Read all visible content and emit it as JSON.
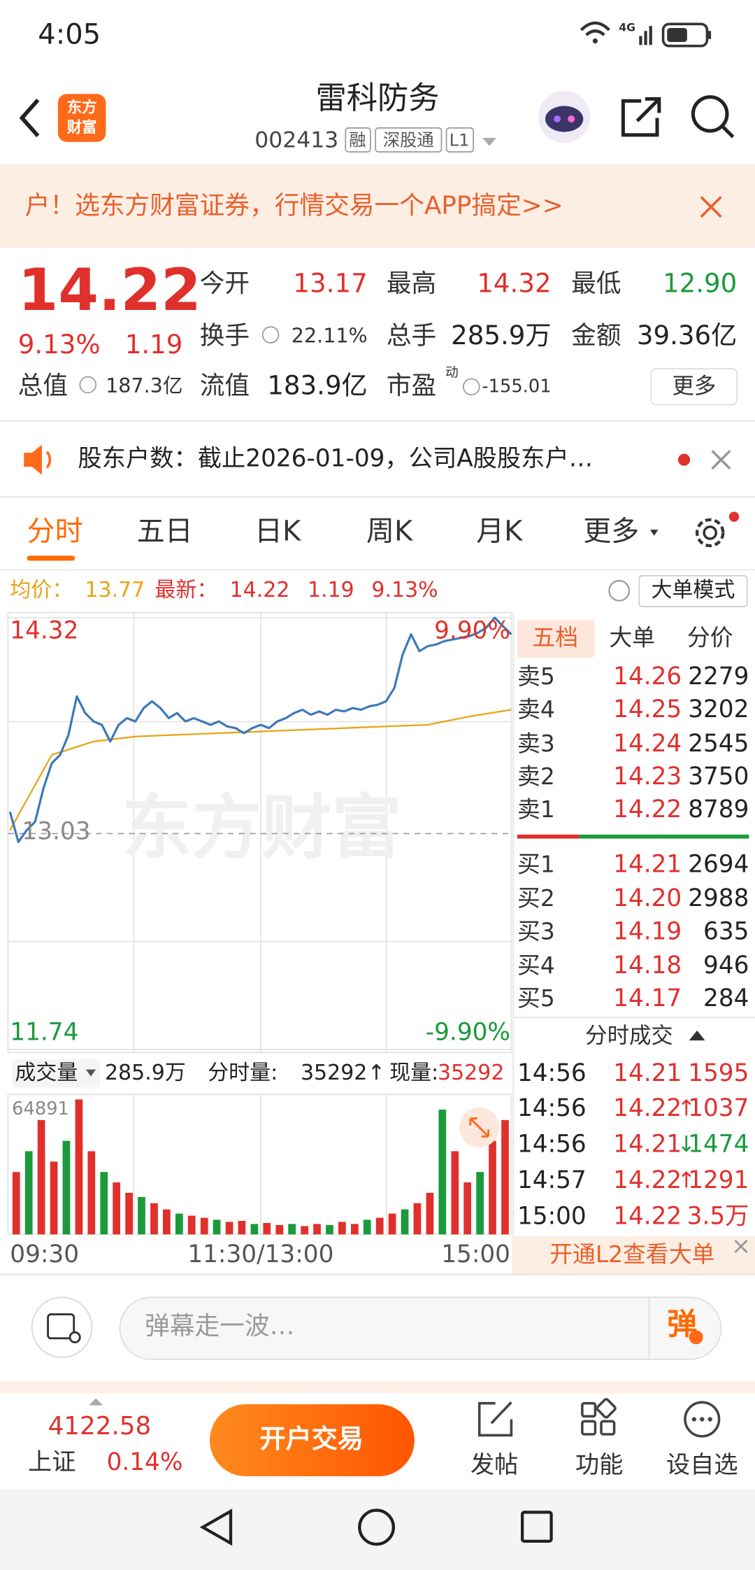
{
  "status_bar": {
    "time": "4:05",
    "network": "4G"
  },
  "header": {
    "logo": [
      "东方",
      "财富"
    ],
    "title": "雷科防务",
    "code": "002413",
    "tags": [
      "融",
      "深股通",
      "L1"
    ]
  },
  "banner": {
    "text": "户！选东方财富证券，行情交易一个APP搞定>>"
  },
  "quote": {
    "price": "14.22",
    "change_pct": "9.13%",
    "change": "1.19",
    "stats": [
      {
        "label": "今开",
        "value": "13.17",
        "color": "#e0302c"
      },
      {
        "label": "最高",
        "value": "14.32",
        "color": "#e0302c"
      },
      {
        "label": "最低",
        "value": "12.90",
        "color": "#1a9a3a"
      },
      {
        "label": "换手",
        "value": "22.11%",
        "color": "#333333"
      },
      {
        "label": "总手",
        "value": "285.9万",
        "color": "#222222"
      },
      {
        "label": "金额",
        "value": "39.36亿",
        "color": "#222222"
      },
      {
        "label": "总值",
        "value": "187.3亿",
        "color": "#333333"
      },
      {
        "label": "流值",
        "value": "183.9亿",
        "color": "#222222"
      },
      {
        "label": "市盈",
        "superscript": "动",
        "value": "-155.01",
        "color": "#333333"
      }
    ],
    "more": "更多"
  },
  "notice": {
    "text": "股东户数：截止2026-01-09，公司A股股东户…"
  },
  "tabs": {
    "items": [
      "分时",
      "五日",
      "日K",
      "周K",
      "月K",
      "更多"
    ],
    "active": 0
  },
  "info_line": {
    "avg_label": "均价：",
    "avg": "13.77",
    "latest_label": "最新：",
    "latest": "14.22",
    "change": "1.19",
    "change_pct": "9.13%",
    "mode": "大单模式"
  },
  "chart": {
    "ylim": [
      11.74,
      14.32
    ],
    "yticks": [
      14.32,
      13.03,
      11.74
    ],
    "pct_top": "9.90%",
    "pct_bottom": "-9.90%",
    "watermark": "东方财富",
    "price": [
      13.16,
      12.98,
      13.05,
      13.1,
      13.3,
      13.45,
      13.5,
      13.62,
      13.85,
      13.75,
      13.7,
      13.68,
      13.58,
      13.68,
      13.72,
      13.7,
      13.78,
      13.82,
      13.78,
      13.72,
      13.75,
      13.7,
      13.72,
      13.7,
      13.68,
      13.7,
      13.67,
      13.66,
      13.63,
      13.66,
      13.68,
      13.66,
      13.7,
      13.72,
      13.75,
      13.77,
      13.74,
      13.76,
      13.74,
      13.77,
      13.76,
      13.78,
      13.77,
      13.79,
      13.8,
      13.82,
      13.9,
      14.1,
      14.22,
      14.12,
      14.15,
      14.16,
      14.18,
      14.19,
      14.2,
      14.21,
      14.23,
      14.26,
      14.32,
      14.27,
      14.22
    ],
    "avg": [
      13.05,
      13.5,
      13.58,
      13.61,
      13.62,
      13.63,
      13.64,
      13.65,
      13.66,
      13.67,
      13.68,
      13.73,
      13.77
    ],
    "x_labels": [
      "09:30",
      "11:30/13:00",
      "15:00"
    ],
    "volume": {
      "label": "成交量",
      "total": "285.9万",
      "minute_label": "分时量:",
      "minute": "35292",
      "arrow": "↑",
      "now_label": "现量:",
      "now": "35292",
      "vmax": 64891,
      "values": [
        30000,
        40000,
        55000,
        35000,
        45000,
        64891,
        40000,
        30000,
        25000,
        20000,
        18000,
        15000,
        12000,
        10000,
        9000,
        8000,
        7000,
        6000,
        6500,
        5000,
        5500,
        4500,
        5000,
        4000,
        5000,
        4500,
        6000,
        5000,
        7000,
        8000,
        10000,
        12000,
        15000,
        20000,
        60000,
        40000,
        25000,
        30000,
        45000,
        55000
      ]
    }
  },
  "order_book": {
    "tabs": [
      "五档",
      "大单",
      "分价"
    ],
    "asks": [
      {
        "label": "卖5",
        "price": "14.26",
        "volume": "2279"
      },
      {
        "label": "卖4",
        "price": "14.25",
        "volume": "3202"
      },
      {
        "label": "卖3",
        "price": "14.24",
        "volume": "2545"
      },
      {
        "label": "卖2",
        "price": "14.23",
        "volume": "3750"
      },
      {
        "label": "卖1",
        "price": "14.22",
        "volume": "8789"
      }
    ],
    "bids": [
      {
        "label": "买1",
        "price": "14.21",
        "volume": "2694"
      },
      {
        "label": "买2",
        "price": "14.20",
        "volume": "2988"
      },
      {
        "label": "买3",
        "price": "14.19",
        "volume": "635"
      },
      {
        "label": "买4",
        "price": "14.18",
        "volume": "946"
      },
      {
        "label": "买5",
        "price": "14.17",
        "volume": "284"
      }
    ]
  },
  "trades": {
    "title": "分时成交",
    "rows": [
      {
        "time": "14:56",
        "price": "14.21",
        "volume": "1595",
        "color": "#e0302c"
      },
      {
        "time": "14:56",
        "price": "14.22",
        "arrow": "↑",
        "volume": "1037",
        "color": "#e0302c"
      },
      {
        "time": "14:56",
        "price": "14.21",
        "arrow": "↓",
        "volume": "1474",
        "color": "#1a9a3a"
      },
      {
        "time": "14:57",
        "price": "14.22",
        "arrow": "↑",
        "volume": "1291",
        "color": "#e0302c"
      },
      {
        "time": "15:00",
        "price": "14.22",
        "volume": "3.5万",
        "color": "#e0302c"
      }
    ],
    "l2_promo": "开通L2查看大单"
  },
  "comment": {
    "placeholder": "弹幕走一波…",
    "button": "弹"
  },
  "bottom": {
    "index_value": "4122.58",
    "index_name": "上证",
    "index_pct": "0.14%",
    "trade_button": "开户交易",
    "actions": [
      "发帖",
      "功能",
      "设自选"
    ]
  }
}
